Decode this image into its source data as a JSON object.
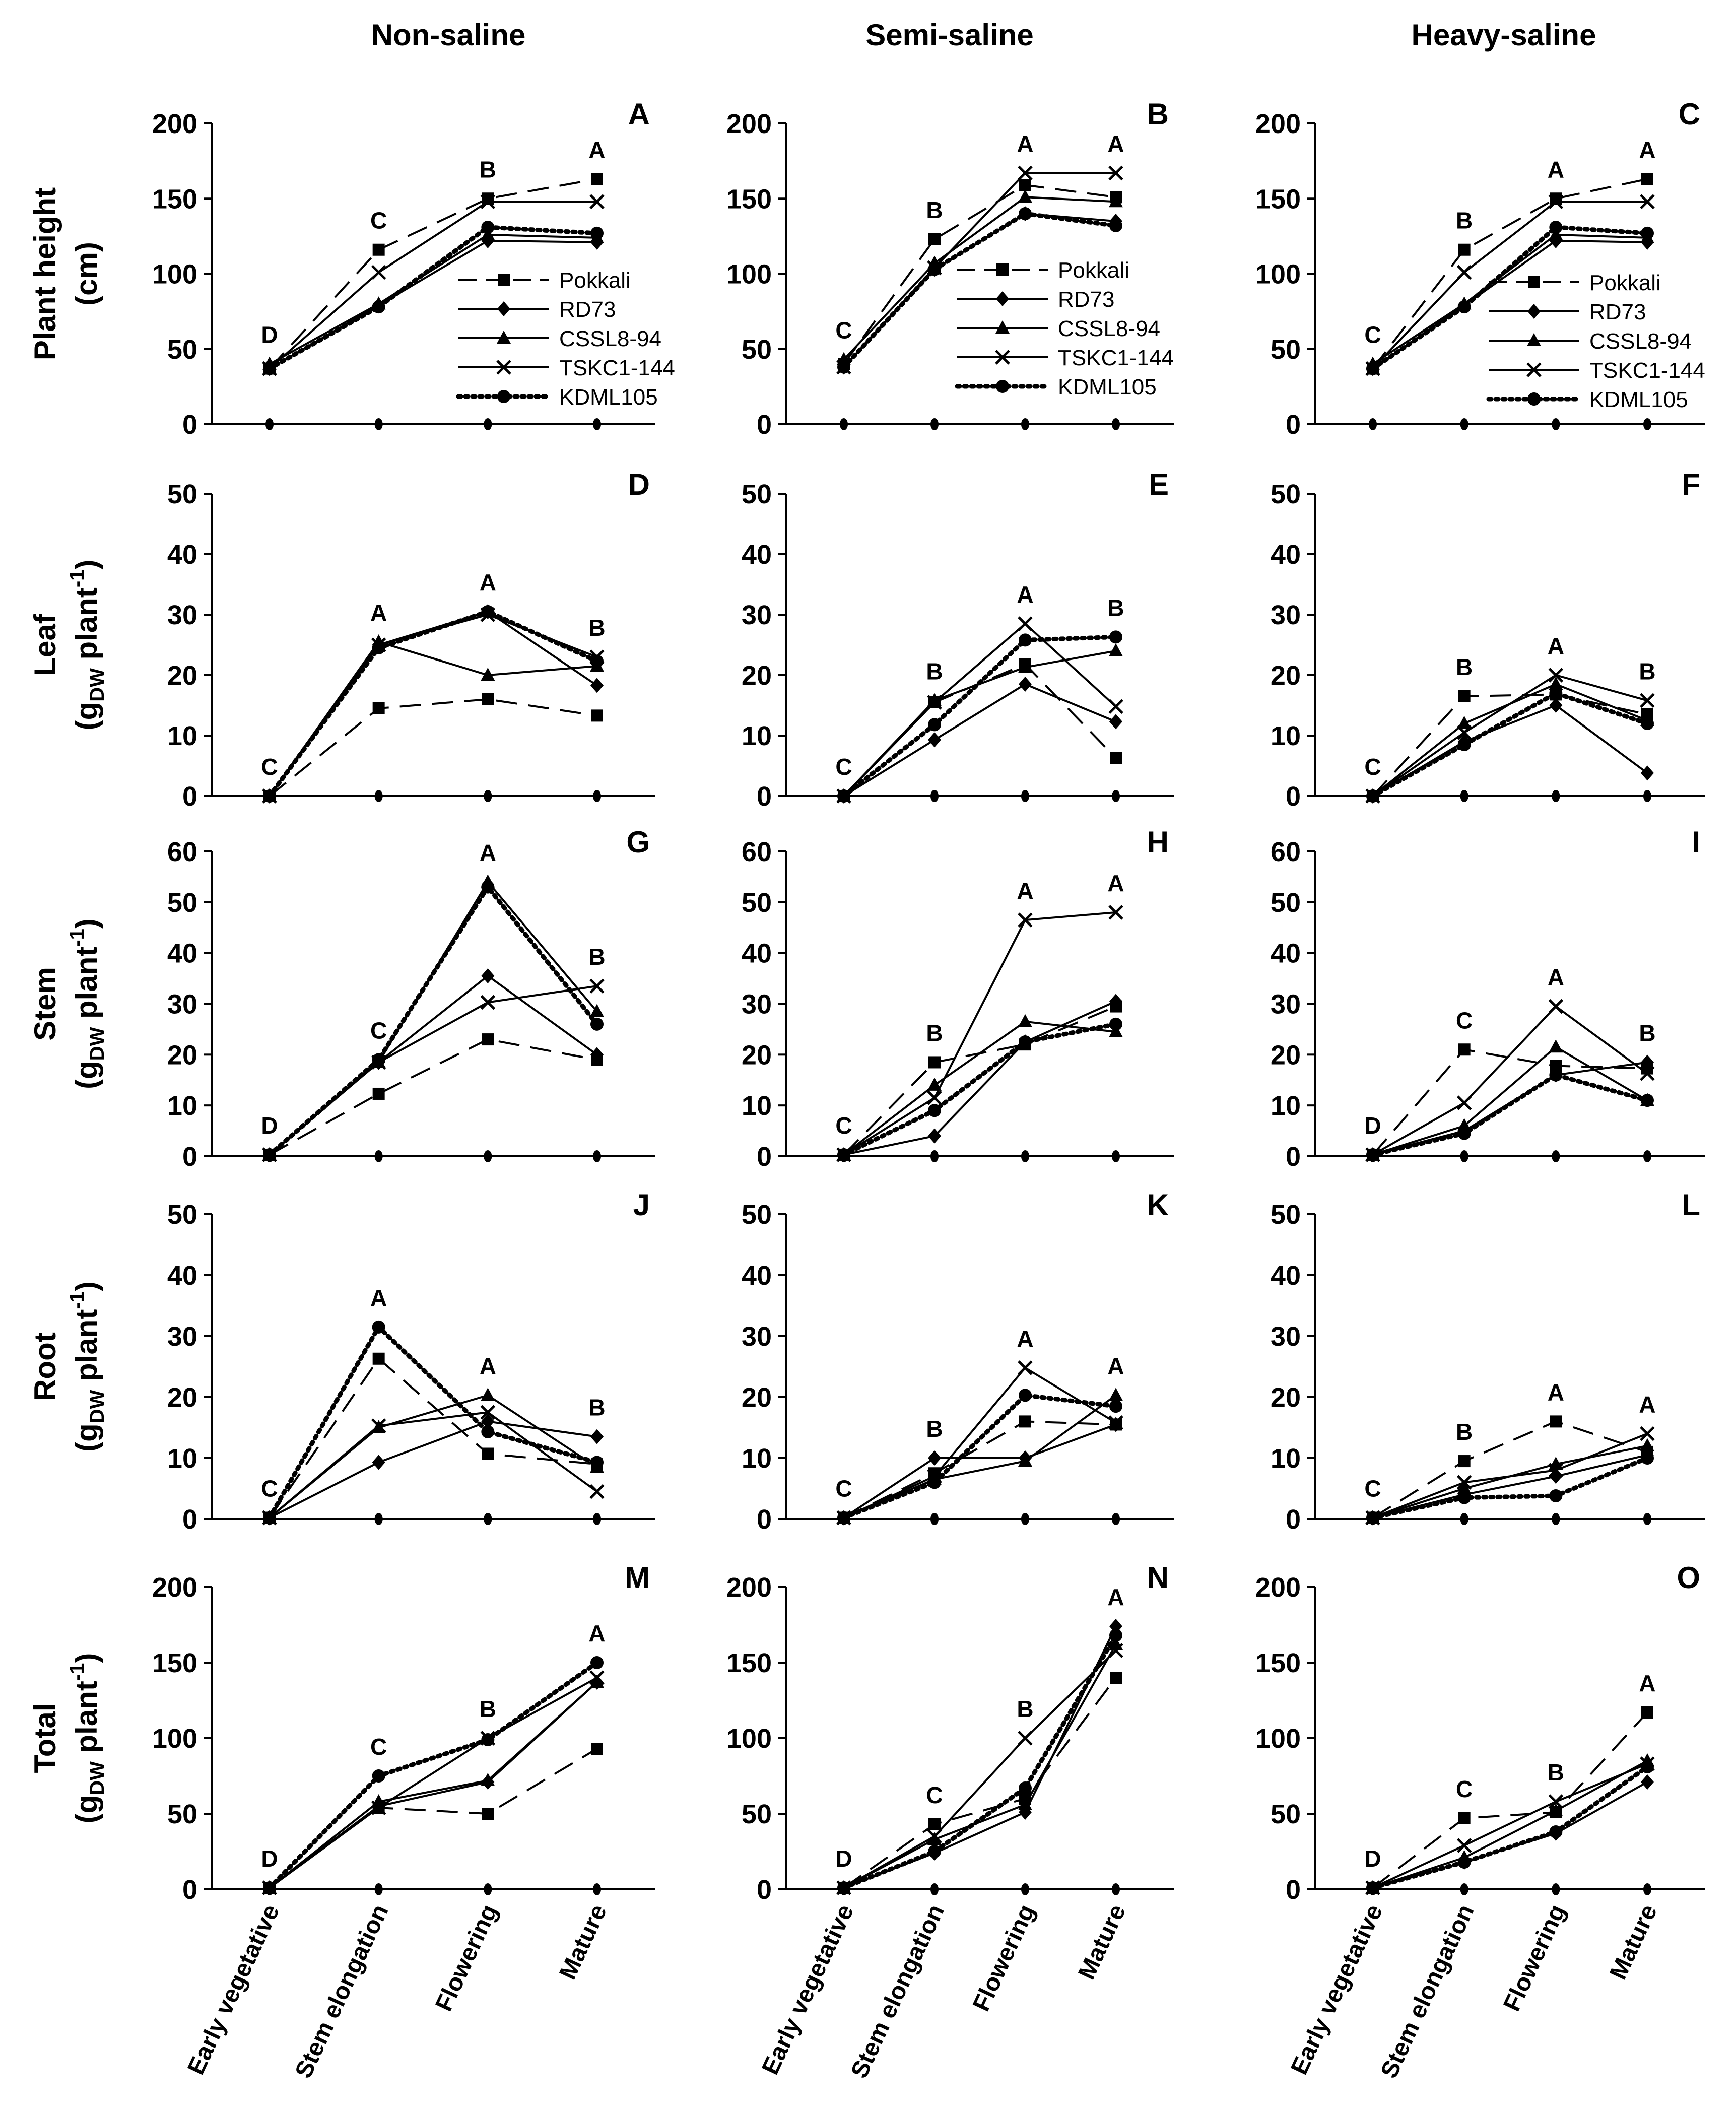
{
  "figure": {
    "column_titles": [
      "Non-saline",
      "Semi-saline",
      "Heavy-saline"
    ],
    "row_labels": [
      {
        "main": "Plant height",
        "line2": "(cm)"
      },
      {
        "main": "Leaf",
        "line2_prefix": "(g",
        "line2_sub": "DW",
        "line2_mid": " plant",
        "line2_sup": "-1",
        "line2_suffix": ")"
      },
      {
        "main": "Stem",
        "line2_prefix": "(g",
        "line2_sub": "DW",
        "line2_mid": " plant",
        "line2_sup": "-1",
        "line2_suffix": ")"
      },
      {
        "main": "Root",
        "line2_prefix": "(g",
        "line2_sub": "DW",
        "line2_mid": " plant",
        "line2_sup": "-1",
        "line2_suffix": ")"
      },
      {
        "main": "Total",
        "line2_prefix": "(g",
        "line2_sub": "DW",
        "line2_mid": " plant",
        "line2_sup": "-1",
        "line2_suffix": ")"
      }
    ],
    "legend": [
      "Pokkali",
      "RD73",
      "CSSL8-94",
      "TSKC1-144",
      "KDML105"
    ],
    "styles": {
      "Pokkali": {
        "dash": "longdash",
        "marker": "square"
      },
      "RD73": {
        "dash": "solid",
        "marker": "diamond"
      },
      "CSSL8-94": {
        "dash": "solid",
        "marker": "triangle"
      },
      "TSKC1-144": {
        "dash": "solid",
        "marker": "x"
      },
      "KDML105": {
        "dash": "dotted",
        "marker": "circle"
      }
    },
    "colors": {
      "line": "#000000",
      "error": "#b3b3b3",
      "text": "#000000",
      "background": "#ffffff"
    }
  },
  "chart_data": [
    {
      "type": "line",
      "panel": "A",
      "row": 0,
      "col": 0,
      "categories": [
        "Early vegetative",
        "Stem elongation",
        "Flowering",
        "Mature"
      ],
      "ylim": [
        0,
        200
      ],
      "yticks": [
        0,
        50,
        100,
        150,
        200
      ],
      "letters": [
        "D",
        "C",
        "B",
        "A"
      ],
      "series": [
        {
          "name": "Pokkali",
          "values": [
            37,
            116,
            150,
            163
          ]
        },
        {
          "name": "RD73",
          "values": [
            37,
            79,
            122,
            121
          ]
        },
        {
          "name": "CSSL8-94",
          "values": [
            40,
            80,
            126,
            124
          ]
        },
        {
          "name": "TSKC1-144",
          "values": [
            37,
            101,
            148,
            148
          ]
        },
        {
          "name": "KDML105",
          "values": [
            37,
            78,
            131,
            127
          ]
        }
      ]
    },
    {
      "type": "line",
      "panel": "B",
      "row": 0,
      "col": 1,
      "categories": [
        "Early vegetative",
        "Stem elongation",
        "Flowering",
        "Mature"
      ],
      "ylim": [
        0,
        200
      ],
      "yticks": [
        0,
        50,
        100,
        150,
        200
      ],
      "letters": [
        "C",
        "B",
        "A",
        "A"
      ],
      "series": [
        {
          "name": "Pokkali",
          "values": [
            40,
            123,
            159,
            151
          ]
        },
        {
          "name": "RD73",
          "values": [
            38,
            103,
            140,
            135
          ]
        },
        {
          "name": "CSSL8-94",
          "values": [
            43,
            107,
            151,
            148
          ]
        },
        {
          "name": "TSKC1-144",
          "values": [
            38,
            104,
            167,
            167
          ]
        },
        {
          "name": "KDML105",
          "values": [
            38,
            103,
            140,
            132
          ]
        }
      ]
    },
    {
      "type": "line",
      "panel": "C",
      "row": 0,
      "col": 2,
      "categories": [
        "Early vegetative",
        "Stem elongation",
        "Flowering",
        "Mature"
      ],
      "ylim": [
        0,
        200
      ],
      "yticks": [
        0,
        50,
        100,
        150,
        200
      ],
      "letters": [
        "C",
        "B",
        "A",
        "A"
      ],
      "series": [
        {
          "name": "Pokkali",
          "values": [
            37,
            116,
            150,
            163
          ]
        },
        {
          "name": "RD73",
          "values": [
            37,
            79,
            122,
            121
          ]
        },
        {
          "name": "CSSL8-94",
          "values": [
            40,
            80,
            126,
            124
          ]
        },
        {
          "name": "TSKC1-144",
          "values": [
            37,
            101,
            148,
            148
          ]
        },
        {
          "name": "KDML105",
          "values": [
            37,
            78,
            131,
            127
          ]
        }
      ]
    },
    {
      "type": "line",
      "panel": "D",
      "row": 1,
      "col": 0,
      "categories": [
        "Early vegetative",
        "Stem elongation",
        "Flowering",
        "Mature"
      ],
      "ylim": [
        0,
        50
      ],
      "yticks": [
        0,
        10,
        20,
        30,
        40,
        50
      ],
      "letters": [
        "C",
        "A",
        "A",
        "B"
      ],
      "series": [
        {
          "name": "Pokkali",
          "values": [
            0,
            14.5,
            16,
            13.3
          ]
        },
        {
          "name": "RD73",
          "values": [
            0,
            25,
            30.5,
            18.3
          ]
        },
        {
          "name": "CSSL8-94",
          "values": [
            0,
            25.5,
            20,
            21.5
          ]
        },
        {
          "name": "TSKC1-144",
          "values": [
            0,
            25,
            30,
            23
          ]
        },
        {
          "name": "KDML105",
          "values": [
            0,
            24.5,
            30.5,
            22.3
          ]
        }
      ]
    },
    {
      "type": "line",
      "panel": "E",
      "row": 1,
      "col": 1,
      "categories": [
        "Early vegetative",
        "Stem elongation",
        "Flowering",
        "Mature"
      ],
      "ylim": [
        0,
        50
      ],
      "yticks": [
        0,
        10,
        20,
        30,
        40,
        50
      ],
      "letters": [
        "C",
        "B",
        "A",
        "B"
      ],
      "series": [
        {
          "name": "Pokkali",
          "values": [
            0,
            15.5,
            21.8,
            6.3
          ]
        },
        {
          "name": "RD73",
          "values": [
            0,
            9.3,
            18.5,
            12.3
          ]
        },
        {
          "name": "CSSL8-94",
          "values": [
            0,
            15.8,
            21.3,
            24
          ]
        },
        {
          "name": "TSKC1-144",
          "values": [
            0,
            15.5,
            28.5,
            14.8
          ]
        },
        {
          "name": "KDML105",
          "values": [
            0,
            11.8,
            25.8,
            26.3
          ]
        }
      ]
    },
    {
      "type": "line",
      "panel": "F",
      "row": 1,
      "col": 2,
      "categories": [
        "Early vegetative",
        "Stem elongation",
        "Flowering",
        "Mature"
      ],
      "ylim": [
        0,
        50
      ],
      "yticks": [
        0,
        10,
        20,
        30,
        40,
        50
      ],
      "letters": [
        "C",
        "B",
        "A",
        "B"
      ],
      "series": [
        {
          "name": "Pokkali",
          "values": [
            0,
            16.5,
            16.8,
            13.5
          ]
        },
        {
          "name": "RD73",
          "values": [
            0,
            9,
            15,
            3.8
          ]
        },
        {
          "name": "CSSL8-94",
          "values": [
            0,
            12,
            18.5,
            12.5
          ]
        },
        {
          "name": "TSKC1-144",
          "values": [
            0,
            10.5,
            20,
            15.8
          ]
        },
        {
          "name": "KDML105",
          "values": [
            0,
            8.5,
            17,
            12
          ]
        }
      ]
    },
    {
      "type": "line",
      "panel": "G",
      "row": 2,
      "col": 0,
      "categories": [
        "Early vegetative",
        "Stem elongation",
        "Flowering",
        "Mature"
      ],
      "ylim": [
        0,
        60
      ],
      "yticks": [
        0,
        10,
        20,
        30,
        40,
        50,
        60
      ],
      "letters": [
        "D",
        "C",
        "A",
        "B"
      ],
      "series": [
        {
          "name": "Pokkali",
          "values": [
            0.3,
            12.3,
            23,
            19
          ]
        },
        {
          "name": "RD73",
          "values": [
            0.3,
            18.5,
            35.5,
            20
          ]
        },
        {
          "name": "CSSL8-94",
          "values": [
            0.3,
            18.5,
            54,
            28.5
          ]
        },
        {
          "name": "TSKC1-144",
          "values": [
            0.3,
            18.5,
            30.3,
            33.5
          ]
        },
        {
          "name": "KDML105",
          "values": [
            0.3,
            19,
            53,
            26
          ]
        }
      ]
    },
    {
      "type": "line",
      "panel": "H",
      "row": 2,
      "col": 1,
      "categories": [
        "Early vegetative",
        "Stem elongation",
        "Flowering",
        "Mature"
      ],
      "ylim": [
        0,
        60
      ],
      "yticks": [
        0,
        10,
        20,
        30,
        40,
        50,
        60
      ],
      "letters": [
        "C",
        "B",
        "A",
        "A"
      ],
      "series": [
        {
          "name": "Pokkali",
          "values": [
            0.3,
            18.5,
            22,
            29.5
          ]
        },
        {
          "name": "RD73",
          "values": [
            0.3,
            4,
            22.5,
            30.5
          ]
        },
        {
          "name": "CSSL8-94",
          "values": [
            0.3,
            14,
            26.5,
            24.5
          ]
        },
        {
          "name": "TSKC1-144",
          "values": [
            0.3,
            11.5,
            46.5,
            48
          ]
        },
        {
          "name": "KDML105",
          "values": [
            0.3,
            9,
            22.5,
            26
          ]
        }
      ]
    },
    {
      "type": "line",
      "panel": "I",
      "row": 2,
      "col": 2,
      "categories": [
        "Early vegetative",
        "Stem elongation",
        "Flowering",
        "Mature"
      ],
      "ylim": [
        0,
        60
      ],
      "yticks": [
        0,
        10,
        20,
        30,
        40,
        50,
        60
      ],
      "letters": [
        "D",
        "C",
        "A",
        "B"
      ],
      "series": [
        {
          "name": "Pokkali",
          "values": [
            0.3,
            21,
            17.8,
            17.3
          ]
        },
        {
          "name": "RD73",
          "values": [
            0.3,
            5,
            16,
            18.5
          ]
        },
        {
          "name": "CSSL8-94",
          "values": [
            0.3,
            6,
            21.5,
            11
          ]
        },
        {
          "name": "TSKC1-144",
          "values": [
            0.3,
            10.5,
            29.5,
            16.3
          ]
        },
        {
          "name": "KDML105",
          "values": [
            0.3,
            4.5,
            16,
            11
          ]
        }
      ]
    },
    {
      "type": "line",
      "panel": "J",
      "row": 3,
      "col": 0,
      "categories": [
        "Early vegetative",
        "Stem elongation",
        "Flowering",
        "Mature"
      ],
      "ylim": [
        0,
        50
      ],
      "yticks": [
        0,
        10,
        20,
        30,
        40,
        50
      ],
      "letters": [
        "C",
        "A",
        "A",
        "B"
      ],
      "series": [
        {
          "name": "Pokkali",
          "values": [
            0.2,
            26.3,
            10.7,
            9
          ]
        },
        {
          "name": "RD73",
          "values": [
            0.2,
            9.3,
            16,
            13.5
          ]
        },
        {
          "name": "CSSL8-94",
          "values": [
            0.2,
            15,
            20.3,
            8.5
          ]
        },
        {
          "name": "TSKC1-144",
          "values": [
            0.2,
            15.3,
            17.5,
            4.5
          ]
        },
        {
          "name": "KDML105",
          "values": [
            0.2,
            31.5,
            14.3,
            9.3
          ]
        }
      ]
    },
    {
      "type": "line",
      "panel": "K",
      "row": 3,
      "col": 1,
      "categories": [
        "Early vegetative",
        "Stem elongation",
        "Flowering",
        "Mature"
      ],
      "ylim": [
        0,
        50
      ],
      "yticks": [
        0,
        10,
        20,
        30,
        40,
        50
      ],
      "letters": [
        "C",
        "B",
        "A",
        "A"
      ],
      "series": [
        {
          "name": "Pokkali",
          "values": [
            0.2,
            7.5,
            16,
            15.5
          ]
        },
        {
          "name": "RD73",
          "values": [
            0.2,
            10,
            10,
            15.5
          ]
        },
        {
          "name": "CSSL8-94",
          "values": [
            0.2,
            6.5,
            9.5,
            20.3
          ]
        },
        {
          "name": "TSKC1-144",
          "values": [
            0.2,
            7,
            24.8,
            15.8
          ]
        },
        {
          "name": "KDML105",
          "values": [
            0.2,
            6,
            20.3,
            18.5
          ]
        }
      ]
    },
    {
      "type": "line",
      "panel": "L",
      "row": 3,
      "col": 2,
      "categories": [
        "Early vegetative",
        "Stem elongation",
        "Flowering",
        "Mature"
      ],
      "ylim": [
        0,
        50
      ],
      "yticks": [
        0,
        10,
        20,
        30,
        40,
        50
      ],
      "letters": [
        "C",
        "B",
        "A",
        "A"
      ],
      "series": [
        {
          "name": "Pokkali",
          "values": [
            0.2,
            9.5,
            16,
            11
          ]
        },
        {
          "name": "RD73",
          "values": [
            0.2,
            4,
            7,
            10.5
          ]
        },
        {
          "name": "CSSL8-94",
          "values": [
            0.2,
            5,
            9,
            12
          ]
        },
        {
          "name": "TSKC1-144",
          "values": [
            0.2,
            6,
            8,
            14
          ]
        },
        {
          "name": "KDML105",
          "values": [
            0.2,
            3.5,
            3.8,
            10
          ]
        }
      ]
    },
    {
      "type": "line",
      "panel": "M",
      "row": 4,
      "col": 0,
      "categories": [
        "Early vegetative",
        "Stem elongation",
        "Flowering",
        "Mature"
      ],
      "ylim": [
        0,
        200
      ],
      "yticks": [
        0,
        50,
        100,
        150,
        200
      ],
      "letters": [
        "D",
        "C",
        "B",
        "A"
      ],
      "series": [
        {
          "name": "Pokkali",
          "values": [
            1,
            54,
            50,
            93
          ]
        },
        {
          "name": "RD73",
          "values": [
            1,
            55,
            71,
            137
          ]
        },
        {
          "name": "CSSL8-94",
          "values": [
            1,
            58,
            72,
            137
          ]
        },
        {
          "name": "TSKC1-144",
          "values": [
            1,
            54,
            100,
            140
          ]
        },
        {
          "name": "KDML105",
          "values": [
            1,
            75,
            99,
            150
          ]
        }
      ]
    },
    {
      "type": "line",
      "panel": "N",
      "row": 4,
      "col": 1,
      "categories": [
        "Early vegetative",
        "Stem elongation",
        "Flowering",
        "Mature"
      ],
      "ylim": [
        0,
        200
      ],
      "yticks": [
        0,
        50,
        100,
        150,
        200
      ],
      "letters": [
        "D",
        "C",
        "B",
        "A"
      ],
      "series": [
        {
          "name": "Pokkali",
          "values": [
            1,
            43,
            60,
            140
          ]
        },
        {
          "name": "RD73",
          "values": [
            1,
            24,
            51,
            174
          ]
        },
        {
          "name": "CSSL8-94",
          "values": [
            1,
            33,
            56,
            162
          ]
        },
        {
          "name": "TSKC1-144",
          "values": [
            1,
            35,
            100,
            158
          ]
        },
        {
          "name": "KDML105",
          "values": [
            1,
            25,
            67,
            168
          ]
        }
      ]
    },
    {
      "type": "line",
      "panel": "O",
      "row": 4,
      "col": 2,
      "categories": [
        "Early vegetative",
        "Stem elongation",
        "Flowering",
        "Mature"
      ],
      "ylim": [
        0,
        200
      ],
      "yticks": [
        0,
        50,
        100,
        150,
        200
      ],
      "letters": [
        "D",
        "C",
        "B",
        "A"
      ],
      "series": [
        {
          "name": "Pokkali",
          "values": [
            1,
            47,
            51,
            117
          ]
        },
        {
          "name": "RD73",
          "values": [
            1,
            18,
            37,
            71
          ]
        },
        {
          "name": "CSSL8-94",
          "values": [
            1,
            21,
            52,
            85
          ]
        },
        {
          "name": "TSKC1-144",
          "values": [
            1,
            29,
            58,
            83
          ]
        },
        {
          "name": "KDML105",
          "values": [
            1,
            18,
            38,
            81
          ]
        }
      ]
    }
  ]
}
